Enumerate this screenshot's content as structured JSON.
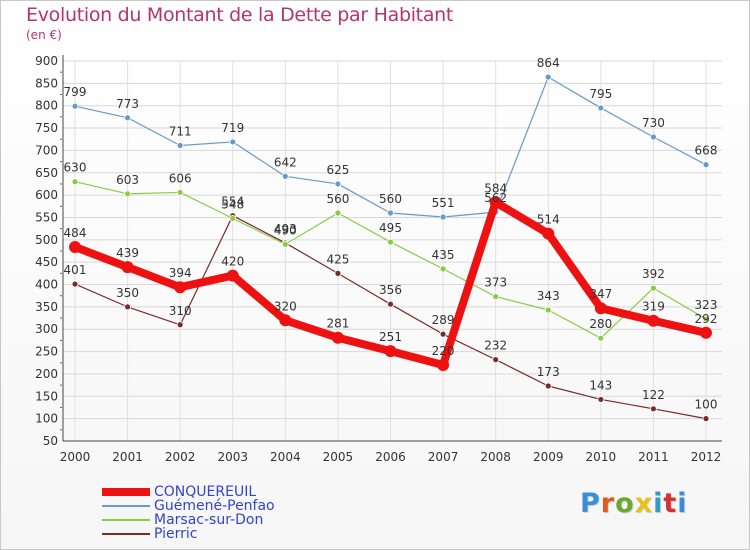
{
  "title": "Evolution du Montant de la Dette par Habitant",
  "subtitle": "(en €)",
  "logo": {
    "text": "Proxiti",
    "letter_colors": [
      "#3a8ed8",
      "#e25a1c",
      "#6aa832",
      "#e8c020",
      "#2c9cc8",
      "#d63030",
      "#3a8ed8"
    ]
  },
  "chart_data": {
    "type": "line",
    "title": "Evolution du Montant de la Dette par Habitant",
    "subtitle": "(en €)",
    "ylim": [
      50,
      900
    ],
    "yticks": [
      50,
      100,
      150,
      200,
      250,
      300,
      350,
      400,
      450,
      500,
      550,
      600,
      650,
      700,
      750,
      800,
      850,
      900
    ],
    "grid": true,
    "legend_position": "bottom-left",
    "categories": [
      "2000",
      "2001",
      "2002",
      "2003",
      "2004",
      "2005",
      "2006",
      "2007",
      "2008",
      "2009",
      "2010",
      "2011",
      "2012"
    ],
    "series": [
      {
        "name": "Pierric",
        "color": "#7a2a2a",
        "values": [
          401,
          350,
          310,
          554,
          493,
          425,
          356,
          289,
          232,
          173,
          143,
          122,
          100
        ],
        "labels": [
          "401",
          "350",
          "310",
          "554",
          "493",
          "425",
          "356",
          "289",
          "232",
          "173",
          "143",
          "122",
          "100"
        ]
      },
      {
        "name": "Marsac-sur-Don",
        "color": "#88cc44",
        "values": [
          630,
          603,
          606,
          548,
          490,
          560,
          495,
          435,
          373,
          343,
          280,
          392,
          323
        ],
        "labels": [
          "630",
          "603",
          "606",
          "548",
          "490",
          "560",
          "495",
          "435",
          "373",
          "343",
          "280",
          "392",
          "323"
        ]
      },
      {
        "name": "Guémené-Penfao",
        "color": "#6699cc",
        "values": [
          799,
          773,
          711,
          719,
          642,
          625,
          560,
          551,
          562,
          864,
          795,
          730,
          668
        ],
        "labels": [
          "799",
          "773",
          "711",
          "719",
          "642",
          "625",
          "560",
          "551",
          "562",
          "864",
          "795",
          "730",
          "668"
        ]
      },
      {
        "name": "CONQUEREUIL",
        "color": "#ee1111",
        "values": [
          484,
          439,
          394,
          420,
          320,
          281,
          251,
          220,
          584,
          514,
          347,
          319,
          292
        ],
        "labels": [
          "484",
          "439",
          "394",
          "420",
          "320",
          "281",
          "251",
          "220",
          "584",
          "514",
          "347",
          "319",
          "292"
        ]
      }
    ]
  },
  "legend": [
    {
      "name": "CONQUEREUIL",
      "color": "#ee1111",
      "thick": true
    },
    {
      "name": "Guémené-Penfao",
      "color": "#6699cc",
      "thick": false
    },
    {
      "name": "Marsac-sur-Don",
      "color": "#88cc44",
      "thick": false
    },
    {
      "name": "Pierric",
      "color": "#7a2a2a",
      "thick": false
    }
  ]
}
